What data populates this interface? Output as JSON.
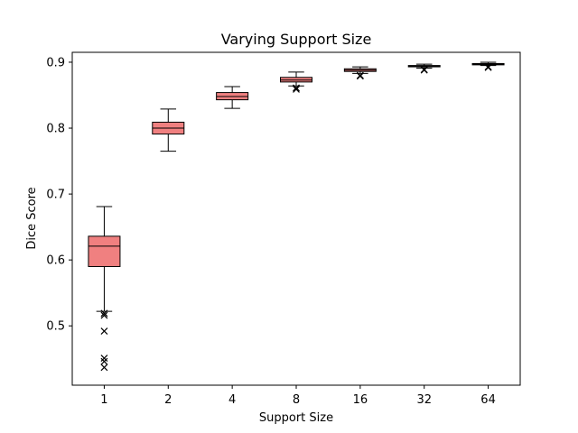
{
  "chart_data": {
    "type": "box",
    "title": "Varying Support Size",
    "xlabel": "Support Size",
    "ylabel": "Dice Score",
    "ylim": [
      0.41,
      0.915
    ],
    "yticks": [
      0.5,
      0.6,
      0.7,
      0.8,
      0.9
    ],
    "ytick_labels": [
      "0.5",
      "0.6",
      "0.7",
      "0.8",
      "0.9"
    ],
    "categories": [
      "1",
      "2",
      "4",
      "8",
      "16",
      "32",
      "64"
    ],
    "box_color": "#f08080",
    "boxes": [
      {
        "whisker_low": 0.522,
        "q1": 0.59,
        "median": 0.621,
        "q3": 0.636,
        "whisker_high": 0.681,
        "outliers": [
          0.519,
          0.516,
          0.492,
          0.451,
          0.446,
          0.437
        ]
      },
      {
        "whisker_low": 0.765,
        "q1": 0.791,
        "median": 0.8,
        "q3": 0.809,
        "whisker_high": 0.829,
        "outliers": []
      },
      {
        "whisker_low": 0.83,
        "q1": 0.843,
        "median": 0.848,
        "q3": 0.854,
        "whisker_high": 0.863,
        "outliers": []
      },
      {
        "whisker_low": 0.864,
        "q1": 0.87,
        "median": 0.873,
        "q3": 0.877,
        "whisker_high": 0.885,
        "outliers": [
          0.861,
          0.859
        ]
      },
      {
        "whisker_low": 0.883,
        "q1": 0.886,
        "median": 0.888,
        "q3": 0.89,
        "whisker_high": 0.893,
        "outliers": [
          0.88,
          0.879
        ]
      },
      {
        "whisker_low": 0.891,
        "q1": 0.893,
        "median": 0.894,
        "q3": 0.895,
        "whisker_high": 0.897,
        "outliers": [
          0.889,
          0.888
        ]
      },
      {
        "whisker_low": 0.895,
        "q1": 0.896,
        "median": 0.897,
        "q3": 0.898,
        "whisker_high": 0.9,
        "outliers": [
          0.893,
          0.892
        ]
      }
    ]
  }
}
